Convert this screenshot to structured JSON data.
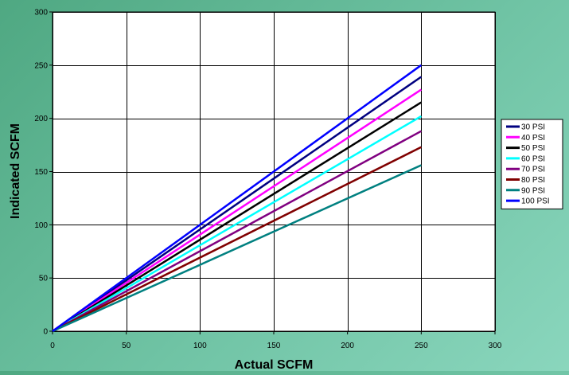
{
  "chart_data": {
    "type": "line",
    "title": "",
    "xlabel": "Actual SCFM",
    "ylabel": "Indicated SCFM",
    "xlim": [
      0,
      300
    ],
    "ylim": [
      0,
      300
    ],
    "xticks": [
      0,
      50,
      100,
      150,
      200,
      250,
      300
    ],
    "yticks": [
      0,
      50,
      100,
      150,
      200,
      250,
      300
    ],
    "grid": true,
    "legend_position": "right",
    "background_color": "#ffffff",
    "series": [
      {
        "name": "30 PSI",
        "color": "#000080",
        "x": [
          0,
          250
        ],
        "y": [
          0,
          239
        ]
      },
      {
        "name": "40 PSI",
        "color": "#ff00ff",
        "x": [
          0,
          250
        ],
        "y": [
          0,
          227
        ]
      },
      {
        "name": "50 PSI",
        "color": "#000000",
        "x": [
          0,
          250
        ],
        "y": [
          0,
          215
        ]
      },
      {
        "name": "60 PSI",
        "color": "#00ffff",
        "x": [
          0,
          250
        ],
        "y": [
          0,
          202
        ]
      },
      {
        "name": "70 PSI",
        "color": "#800080",
        "x": [
          0,
          250
        ],
        "y": [
          0,
          188
        ]
      },
      {
        "name": "80 PSI",
        "color": "#800000",
        "x": [
          0,
          250
        ],
        "y": [
          0,
          173
        ]
      },
      {
        "name": "90 PSI",
        "color": "#008080",
        "x": [
          0,
          250
        ],
        "y": [
          0,
          156
        ]
      },
      {
        "name": "100 PSI",
        "color": "#0000ff",
        "x": [
          0,
          250
        ],
        "y": [
          0,
          250
        ]
      }
    ]
  }
}
